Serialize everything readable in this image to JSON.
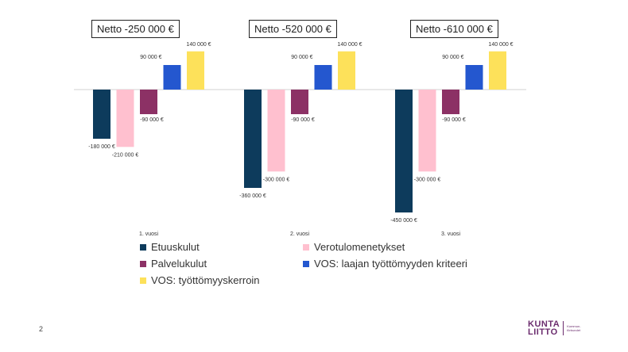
{
  "chart_data": {
    "type": "bar",
    "categories": [
      "1. vuosi",
      "2. vuosi",
      "3. vuosi"
    ],
    "series": [
      {
        "name": "Etuuskulut",
        "values": [
          -180000,
          -360000,
          -450000
        ],
        "labels": [
          "-180 000 €",
          "-360 000 €",
          "-450 000 €"
        ],
        "color": "#0d3b5c"
      },
      {
        "name": "Verotulomenetykset",
        "values": [
          -210000,
          -300000,
          -300000
        ],
        "labels": [
          "-210 000 €",
          "-300 000 €",
          "-300 000 €"
        ],
        "color": "#ffc0cf"
      },
      {
        "name": "Palvelukulut",
        "values": [
          -90000,
          -90000,
          -90000
        ],
        "labels": [
          "-90 000 €",
          "-90 000 €",
          "-90 000 €"
        ],
        "color": "#8c3165"
      },
      {
        "name": "VOS: laajan työttömyyden kriteeri",
        "values": [
          90000,
          90000,
          90000
        ],
        "labels": [
          "90 000 €",
          "90 000 €",
          "90 000 €"
        ],
        "color": "#2457cf"
      },
      {
        "name": "VOS: työttömyyskerroin",
        "values": [
          140000,
          140000,
          140000
        ],
        "labels": [
          "140 000 €",
          "140 000 €",
          "140 000 €"
        ],
        "color": "#fde15a"
      }
    ],
    "annotations": [
      "Netto -250 000 €",
      "Netto -520 000 €",
      "Netto -610 000 €"
    ],
    "ylim": [
      -450000,
      140000
    ],
    "legend_position": "bottom",
    "grid": false
  },
  "page_number": "2",
  "logo": {
    "line1": "KUNTA",
    "line2": "LIITTO",
    "sub1": "Kommun-",
    "sub2": "förbundet"
  }
}
